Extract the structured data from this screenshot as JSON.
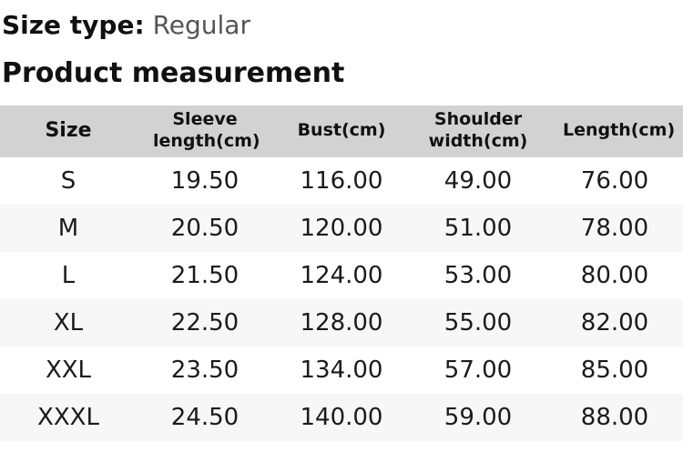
{
  "size_type": {
    "label": "Size type:",
    "value": "Regular"
  },
  "section_title": "Product measurement",
  "table": {
    "columns": [
      "Size",
      "Sleeve length(cm)",
      "Bust(cm)",
      "Shoulder width(cm)",
      "Length(cm)"
    ],
    "rows": [
      [
        "S",
        "19.50",
        "116.00",
        "49.00",
        "76.00"
      ],
      [
        "M",
        "20.50",
        "120.00",
        "51.00",
        "78.00"
      ],
      [
        "L",
        "21.50",
        "124.00",
        "53.00",
        "80.00"
      ],
      [
        "XL",
        "22.50",
        "128.00",
        "55.00",
        "82.00"
      ],
      [
        "XXL",
        "23.50",
        "134.00",
        "57.00",
        "85.00"
      ],
      [
        "XXXL",
        "24.50",
        "140.00",
        "59.00",
        "88.00"
      ]
    ]
  },
  "colors": {
    "header_bg": "#d2d2d2",
    "row_alt_bg": "#f7f7f7",
    "muted_text": "#555555",
    "text": "#1b1b1b"
  }
}
